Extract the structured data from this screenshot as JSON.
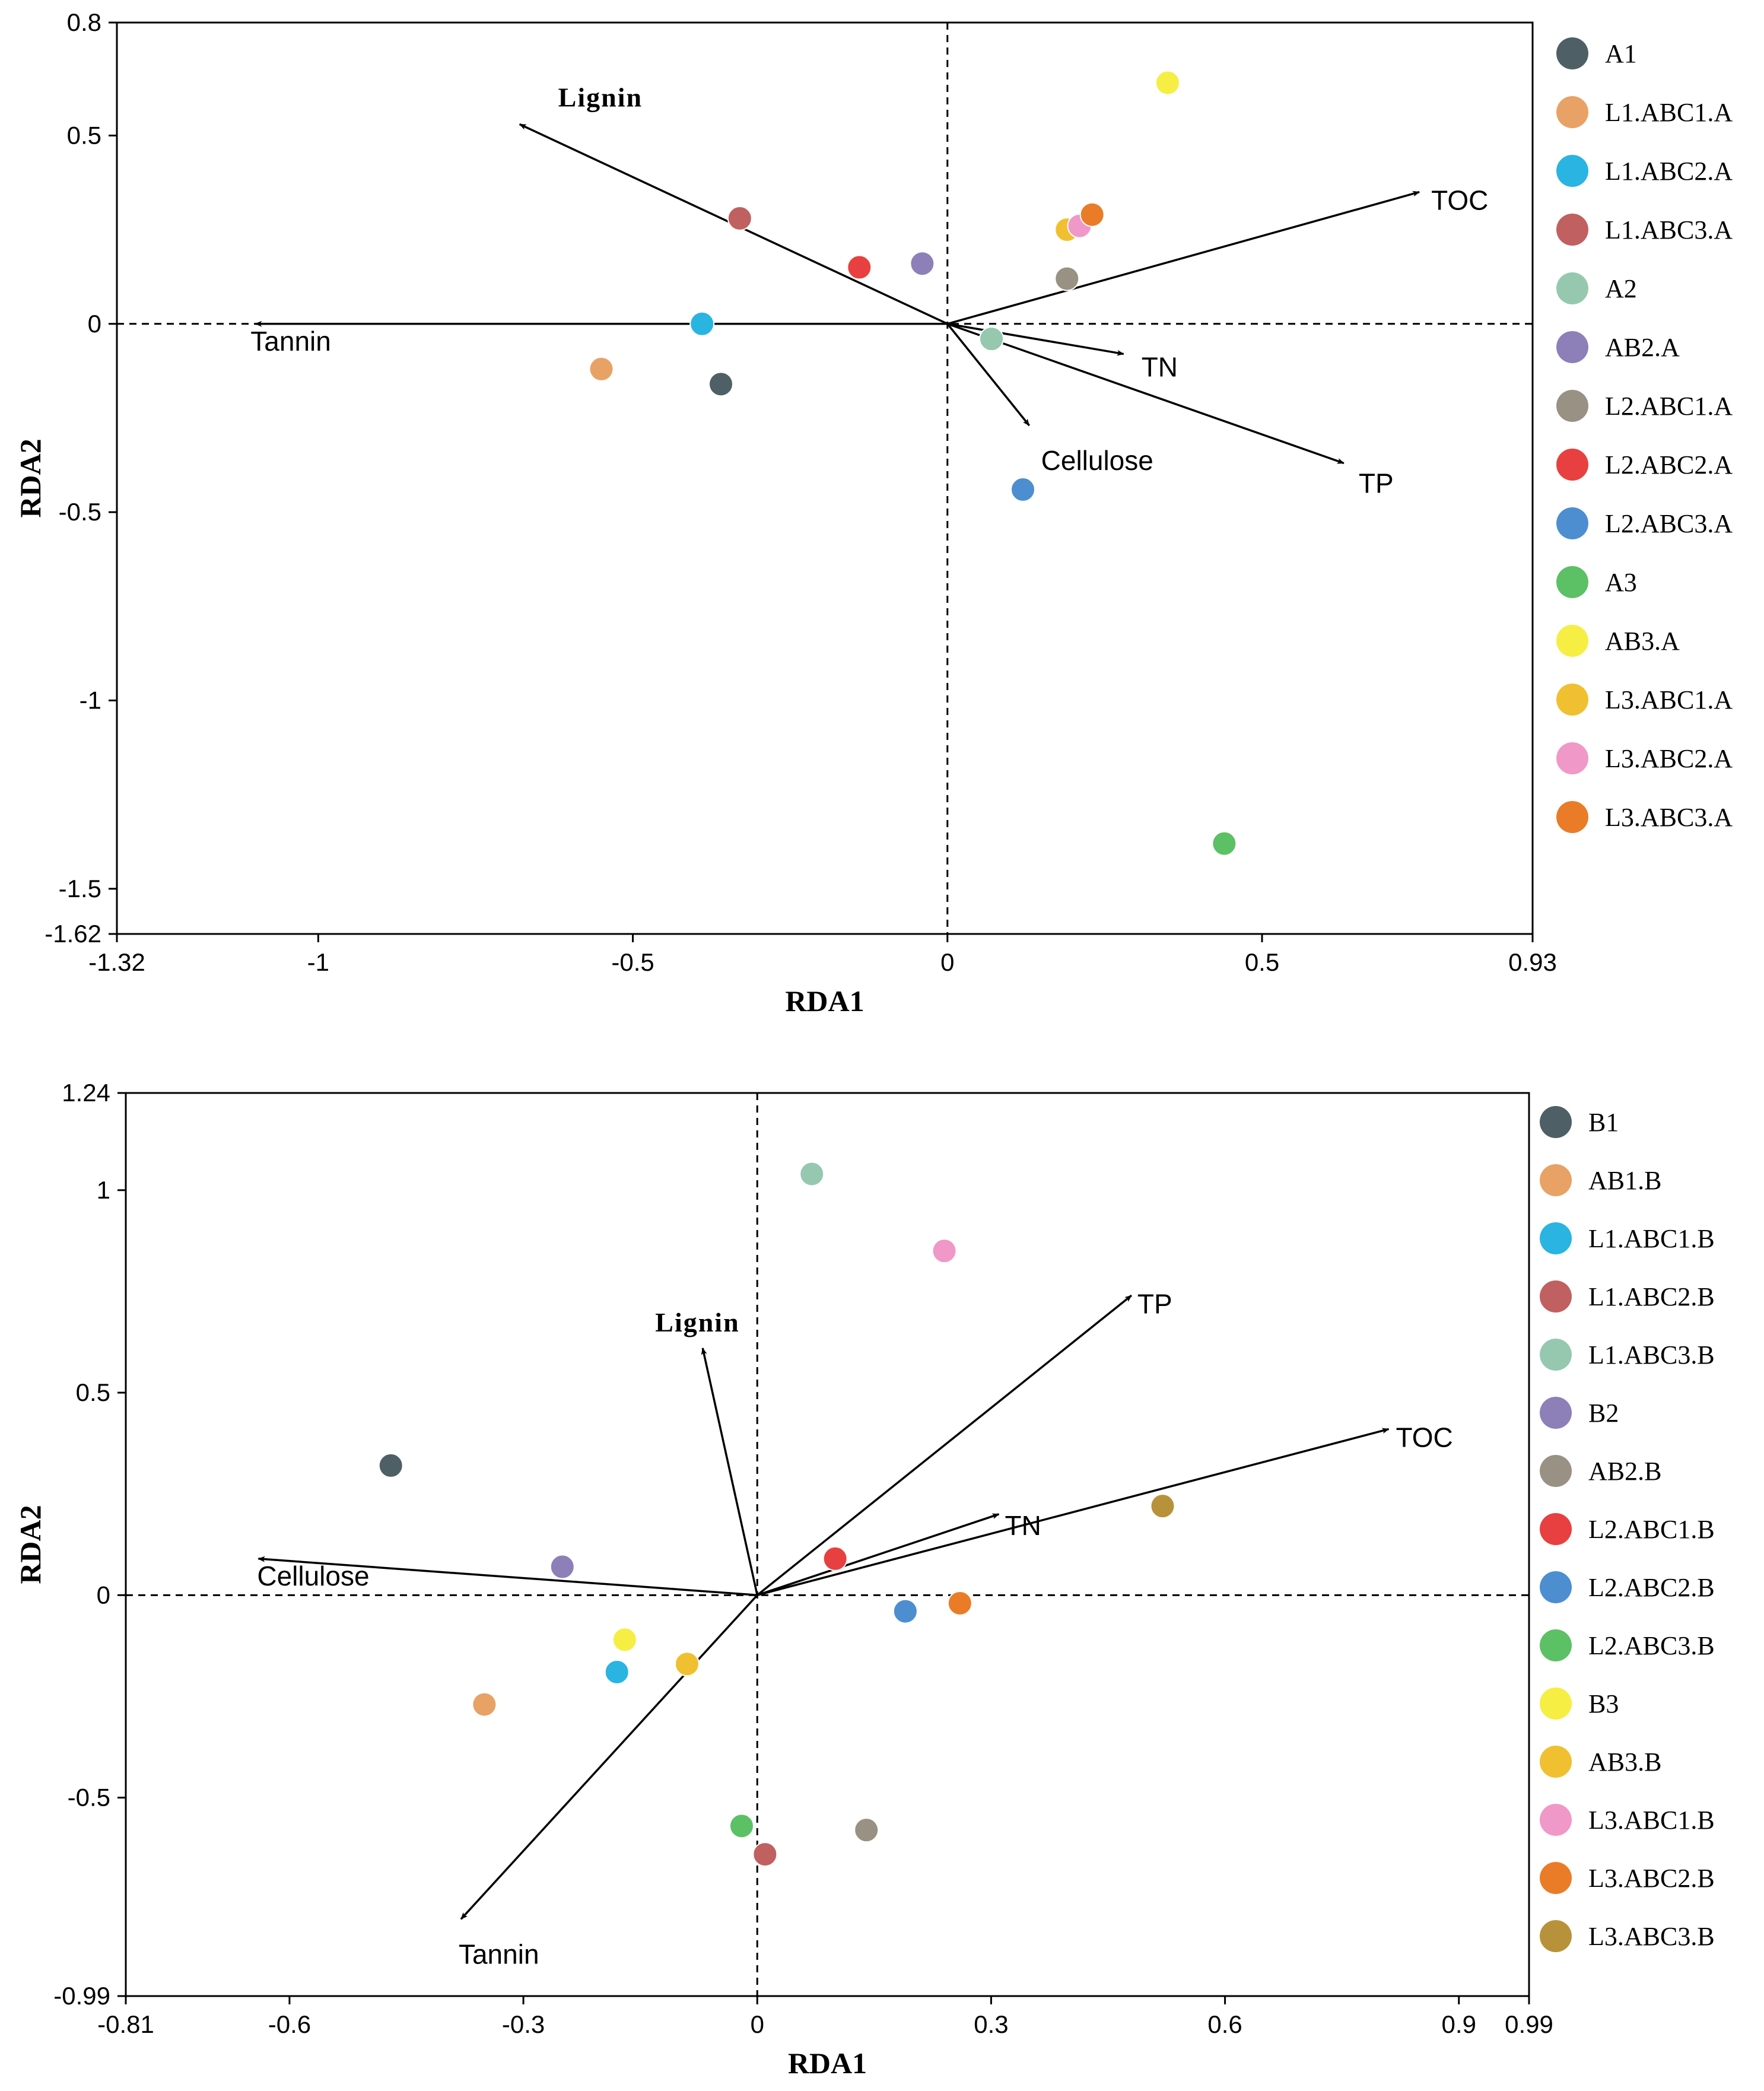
{
  "chart_data": [
    {
      "type": "scatter",
      "title": "",
      "xlabel": "RDA1",
      "ylabel": "RDA2",
      "xlim": [
        -1.32,
        0.93
      ],
      "ylim": [
        -1.62,
        0.8
      ],
      "xticks": [
        -1.32,
        -1,
        -0.5,
        0,
        0.5,
        0.93
      ],
      "xtick_labels": [
        "-1.32",
        "-1",
        "-0.5",
        "0",
        "0.5",
        "0.93"
      ],
      "yticks": [
        0.8,
        0.5,
        0,
        -0.5,
        -1,
        -1.5,
        -1.62
      ],
      "ytick_labels": [
        "0.8",
        "0.5",
        "0",
        "-0.5",
        "-1",
        "-1.5",
        "-1.62"
      ],
      "legend_position": "right",
      "vectors": [
        {
          "name": "Lignin",
          "x": -0.68,
          "y": 0.53,
          "style": "serif"
        },
        {
          "name": "TOC",
          "x": 0.75,
          "y": 0.35,
          "style": "sans"
        },
        {
          "name": "Tannin",
          "x": -1.1,
          "y": 0.0,
          "style": "sans"
        },
        {
          "name": "TN",
          "x": 0.28,
          "y": -0.08,
          "style": "sans"
        },
        {
          "name": "Cellulose",
          "x": 0.13,
          "y": -0.27,
          "style": "sans"
        },
        {
          "name": "TP",
          "x": 0.63,
          "y": -0.37,
          "style": "sans"
        }
      ],
      "series": [
        {
          "name": "A1",
          "color": "#4f5f66",
          "x": -0.36,
          "y": -0.16
        },
        {
          "name": "L1.ABC1.A",
          "color": "#e8a265",
          "x": -0.55,
          "y": -0.12
        },
        {
          "name": "L1.ABC2.A",
          "color": "#29b4e2",
          "x": -0.39,
          "y": 0.0
        },
        {
          "name": "L1.ABC3.A",
          "color": "#c06060",
          "x": -0.33,
          "y": 0.28
        },
        {
          "name": "A2",
          "color": "#96c8b0",
          "x": 0.07,
          "y": -0.04
        },
        {
          "name": "AB2.A",
          "color": "#8d80b8",
          "x": -0.04,
          "y": 0.16
        },
        {
          "name": "L2.ABC1.A",
          "color": "#989184",
          "x": 0.19,
          "y": 0.12
        },
        {
          "name": "L2.ABC2.A",
          "color": "#e84040",
          "x": -0.14,
          "y": 0.15
        },
        {
          "name": "L2.ABC3.A",
          "color": "#4d8ed0",
          "x": 0.12,
          "y": -0.44
        },
        {
          "name": "A3",
          "color": "#5cc065",
          "x": 0.44,
          "y": -1.38
        },
        {
          "name": "AB3.A",
          "color": "#f6ee43",
          "x": 0.35,
          "y": 0.64
        },
        {
          "name": "L3.ABC1.A",
          "color": "#f0c030",
          "x": 0.19,
          "y": 0.25
        },
        {
          "name": "L3.ABC2.A",
          "color": "#f098c8",
          "x": 0.21,
          "y": 0.26
        },
        {
          "name": "L3.ABC3.A",
          "color": "#ea7c28",
          "x": 0.23,
          "y": 0.29
        }
      ]
    },
    {
      "type": "scatter",
      "title": "",
      "xlabel": "RDA1",
      "ylabel": "RDA2",
      "xlim": [
        -0.81,
        0.99
      ],
      "ylim": [
        -0.99,
        1.24
      ],
      "xticks": [
        -0.81,
        -0.6,
        -0.3,
        0,
        0.3,
        0.6,
        0.9,
        0.99
      ],
      "xtick_labels": [
        "-0.81",
        "-0.6",
        "-0.3",
        "0",
        "0.3",
        "0.6",
        "0.9",
        "0.99"
      ],
      "yticks": [
        1.24,
        1,
        0.5,
        0,
        -0.5,
        -0.99
      ],
      "ytick_labels": [
        "1.24",
        "1",
        "0.5",
        "0",
        "-0.5",
        "-0.99"
      ],
      "legend_position": "right",
      "vectors": [
        {
          "name": "Lignin",
          "x": -0.07,
          "y": 0.61,
          "style": "serif"
        },
        {
          "name": "TP",
          "x": 0.48,
          "y": 0.74,
          "style": "sans"
        },
        {
          "name": "TOC",
          "x": 0.81,
          "y": 0.41,
          "style": "sans"
        },
        {
          "name": "TN",
          "x": 0.31,
          "y": 0.2,
          "style": "sans"
        },
        {
          "name": "Cellulose",
          "x": -0.64,
          "y": 0.09,
          "style": "sans"
        },
        {
          "name": "Tannin",
          "x": -0.38,
          "y": -0.8,
          "style": "sans"
        }
      ],
      "series": [
        {
          "name": "B1",
          "color": "#4f5f66",
          "x": -0.47,
          "y": 0.32
        },
        {
          "name": "AB1.B",
          "color": "#e8a265",
          "x": -0.35,
          "y": -0.27
        },
        {
          "name": "L1.ABC1.B",
          "color": "#29b4e2",
          "x": -0.18,
          "y": -0.19
        },
        {
          "name": "L1.ABC2.B",
          "color": "#c06060",
          "x": 0.01,
          "y": -0.64
        },
        {
          "name": "L1.ABC3.B",
          "color": "#96c8b0",
          "x": 0.07,
          "y": 1.04
        },
        {
          "name": "B2",
          "color": "#8d80b8",
          "x": -0.25,
          "y": 0.07
        },
        {
          "name": "AB2.B",
          "color": "#989184",
          "x": 0.14,
          "y": -0.58
        },
        {
          "name": "L2.ABC1.B",
          "color": "#e84040",
          "x": 0.1,
          "y": 0.09
        },
        {
          "name": "L2.ABC2.B",
          "color": "#4d8ed0",
          "x": 0.19,
          "y": -0.04
        },
        {
          "name": "L2.ABC3.B",
          "color": "#5cc065",
          "x": -0.02,
          "y": -0.57
        },
        {
          "name": "B3",
          "color": "#f6ee43",
          "x": -0.17,
          "y": -0.11
        },
        {
          "name": "AB3.B",
          "color": "#f0c030",
          "x": -0.09,
          "y": -0.17
        },
        {
          "name": "L3.ABC1.B",
          "color": "#f098c8",
          "x": 0.24,
          "y": 0.85
        },
        {
          "name": "L3.ABC2.B",
          "color": "#ea7c28",
          "x": 0.26,
          "y": -0.02
        },
        {
          "name": "L3.ABC3.B",
          "color": "#b8923a",
          "x": 0.52,
          "y": 0.22
        }
      ]
    }
  ]
}
